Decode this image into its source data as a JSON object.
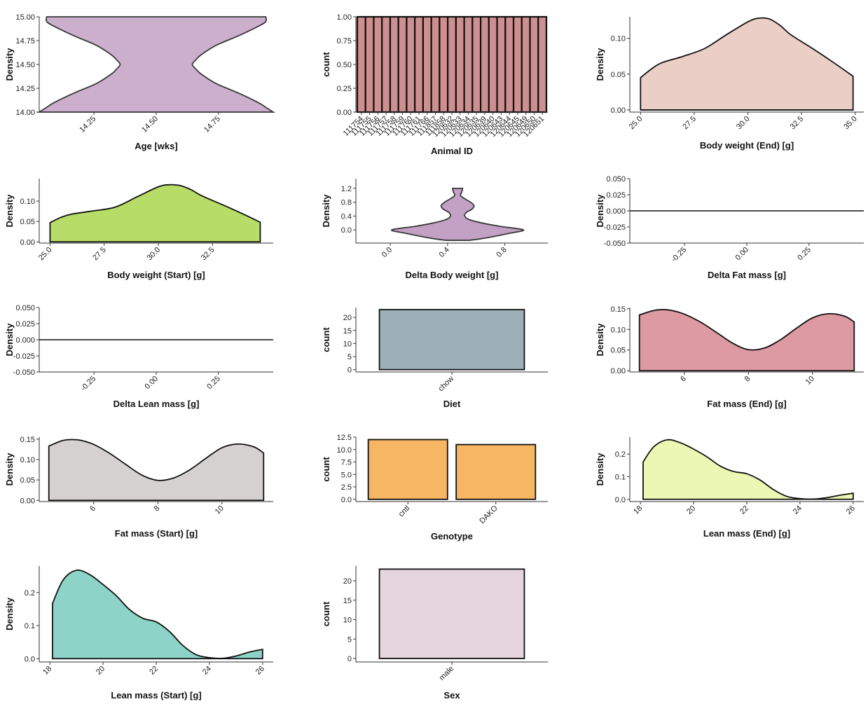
{
  "chart_data": [
    {
      "id": "age",
      "type": "violin",
      "xlabel": "Age [wks]",
      "ylabel": "Density",
      "fill": "#cbafcd",
      "ylim": [
        14.0,
        15.0
      ],
      "yticks": [
        "14.00",
        "14.25",
        "14.50",
        "14.75",
        "15.00"
      ],
      "xlim": [
        14.03,
        14.97
      ],
      "xticks": [
        "14.25",
        "14.50",
        "14.75"
      ],
      "shape_y": [
        14.0,
        14.05,
        14.1,
        14.2,
        14.3,
        14.4,
        14.45,
        14.5,
        14.55,
        14.6,
        14.7,
        14.8,
        14.9,
        14.95,
        15.0
      ],
      "shape_halfwidth": [
        0.47,
        0.44,
        0.41,
        0.33,
        0.24,
        0.18,
        0.16,
        0.145,
        0.16,
        0.18,
        0.24,
        0.33,
        0.41,
        0.44,
        0.44
      ]
    },
    {
      "id": "animal",
      "type": "bar",
      "xlabel": "Animal ID",
      "ylabel": "count",
      "fill": "#cd8f90",
      "ylim": [
        0,
        1.0
      ],
      "yticks": [
        "0.00",
        "0.25",
        "0.50",
        "0.75",
        "1.00"
      ],
      "categories": [
        "111754",
        "111755",
        "111756",
        "111757",
        "111758",
        "111759",
        "111760",
        "111761",
        "111766",
        "111857",
        "111858",
        "120632",
        "120633",
        "120634",
        "120635",
        "120639",
        "120640",
        "120643",
        "120644",
        "120645",
        "120649",
        "120650",
        "120651"
      ],
      "values": [
        1,
        1,
        1,
        1,
        1,
        1,
        1,
        1,
        1,
        1,
        1,
        1,
        1,
        1,
        1,
        1,
        1,
        1,
        1,
        1,
        1,
        1,
        1
      ]
    },
    {
      "id": "bw_end",
      "type": "density",
      "xlabel": "Body weight (End) [g]",
      "ylabel": "Density",
      "fill": "#ebcfc6",
      "xlim": [
        24.5,
        35.4
      ],
      "xticks": [
        "25.0",
        "27.5",
        "30.0",
        "32.5",
        "35.0"
      ],
      "ylim": [
        -0.003,
        0.13
      ],
      "yticks": [
        "0.00",
        "0.05",
        "0.10"
      ],
      "x": [
        25.0,
        25.5,
        26.0,
        27.0,
        28.0,
        29.0,
        30.0,
        30.5,
        31.0,
        31.5,
        32.0,
        33.0,
        34.0,
        34.9
      ],
      "y": [
        0.045,
        0.057,
        0.066,
        0.075,
        0.086,
        0.105,
        0.123,
        0.128,
        0.127,
        0.118,
        0.105,
        0.086,
        0.066,
        0.047
      ]
    },
    {
      "id": "bw_start",
      "type": "density",
      "xlabel": "Body weight (Start) [g]",
      "ylabel": "Density",
      "fill": "#b8dc68",
      "xlim": [
        24.5,
        35.3
      ],
      "xticks": [
        "25.0",
        "27.5",
        "30.0",
        "32.5"
      ],
      "ylim": [
        -0.003,
        0.155
      ],
      "yticks": [
        "0.00",
        "0.05",
        "0.10"
      ],
      "x": [
        25.0,
        25.5,
        26.0,
        27.0,
        28.0,
        29.0,
        30.0,
        30.5,
        31.0,
        31.5,
        32.0,
        33.0,
        34.0,
        34.7
      ],
      "y": [
        0.047,
        0.06,
        0.068,
        0.076,
        0.085,
        0.11,
        0.135,
        0.14,
        0.138,
        0.128,
        0.113,
        0.09,
        0.066,
        0.048
      ]
    },
    {
      "id": "delta_bw",
      "type": "violin",
      "xlabel": "Delta Body weight [g]",
      "ylabel": "Density",
      "fill": "#c2a1c4",
      "ylim": [
        -0.38,
        1.48
      ],
      "yticks": [
        "0.0",
        "0.4",
        "0.8",
        "1.2"
      ],
      "xlim": [
        -0.24,
        1.1
      ],
      "xticks": [
        "0.0",
        "0.4",
        "0.8"
      ],
      "center_x": 0.47,
      "shape_y": [
        -0.3,
        -0.27,
        -0.2,
        -0.1,
        0.0,
        0.1,
        0.2,
        0.3,
        0.4,
        0.5,
        0.6,
        0.7,
        0.8,
        0.9,
        1.0,
        1.1,
        1.2
      ],
      "shape_halfwidth": [
        0.08,
        0.14,
        0.24,
        0.36,
        0.46,
        0.3,
        0.17,
        0.08,
        0.05,
        0.06,
        0.1,
        0.115,
        0.09,
        0.05,
        0.02,
        0.03,
        0.035
      ]
    },
    {
      "id": "delta_fat",
      "type": "density",
      "xlabel": "Delta Fat mass [g]",
      "ylabel": "Density",
      "fill": "#333333",
      "xlim": [
        -0.47,
        0.47
      ],
      "xticks": [
        "-0.25",
        "0.00",
        "0.25"
      ],
      "ylim": [
        -0.05,
        0.05
      ],
      "yticks": [
        "-0.050",
        "-0.025",
        "0.000",
        "0.025",
        "0.050"
      ],
      "x": [
        -0.47,
        0.47
      ],
      "y": [
        0,
        0
      ]
    },
    {
      "id": "delta_lean",
      "type": "density",
      "xlabel": "Delta Lean mass [g]",
      "ylabel": "Density",
      "fill": "#333333",
      "xlim": [
        -0.47,
        0.47
      ],
      "xticks": [
        "-0.25",
        "0.00",
        "0.25"
      ],
      "ylim": [
        -0.05,
        0.05
      ],
      "yticks": [
        "-0.050",
        "-0.025",
        "0.000",
        "0.025",
        "0.050"
      ],
      "x": [
        -0.47,
        0.47
      ],
      "y": [
        0,
        0
      ]
    },
    {
      "id": "diet",
      "type": "bar",
      "xlabel": "Diet",
      "ylabel": "count",
      "fill": "#9db0b7",
      "ylim": [
        -0.9,
        23.8
      ],
      "yticks": [
        "0",
        "5",
        "10",
        "15",
        "20"
      ],
      "categories": [
        "chow"
      ],
      "values": [
        23
      ]
    },
    {
      "id": "fat_end",
      "type": "density",
      "xlabel": "Fat mass (End) [g]",
      "ylabel": "Density",
      "fill": "#dd9aa2",
      "xlim": [
        4.3,
        11.6
      ],
      "xticks": [
        "6",
        "8",
        "10"
      ],
      "ylim": [
        -0.003,
        0.153
      ],
      "yticks": [
        "0.00",
        "0.05",
        "0.10",
        "0.15"
      ],
      "x": [
        4.6,
        5.0,
        5.3,
        5.6,
        6.0,
        6.5,
        7.0,
        7.5,
        8.0,
        8.5,
        9.0,
        9.5,
        10.0,
        10.5,
        11.0,
        11.3
      ],
      "y": [
        0.135,
        0.145,
        0.148,
        0.146,
        0.137,
        0.118,
        0.093,
        0.067,
        0.051,
        0.055,
        0.075,
        0.103,
        0.128,
        0.138,
        0.132,
        0.118
      ]
    },
    {
      "id": "fat_start",
      "type": "density",
      "xlabel": "Fat mass (Start) [g]",
      "ylabel": "Density",
      "fill": "#d4d1d0",
      "xlim": [
        4.3,
        11.6
      ],
      "xticks": [
        "6",
        "8",
        "10"
      ],
      "ylim": [
        -0.003,
        0.155
      ],
      "yticks": [
        "0.00",
        "0.05",
        "0.10",
        "0.15"
      ],
      "x": [
        4.6,
        5.0,
        5.3,
        5.6,
        6.0,
        6.5,
        7.0,
        7.5,
        8.0,
        8.5,
        9.0,
        9.5,
        10.0,
        10.5,
        11.0,
        11.3
      ],
      "y": [
        0.133,
        0.146,
        0.149,
        0.147,
        0.137,
        0.115,
        0.088,
        0.062,
        0.049,
        0.055,
        0.075,
        0.103,
        0.129,
        0.138,
        0.131,
        0.116
      ]
    },
    {
      "id": "genotype",
      "type": "bar",
      "xlabel": "Genotype",
      "ylabel": "count",
      "fill": "#f6b663",
      "ylim": [
        -0.45,
        12.5
      ],
      "yticks": [
        "0.0",
        "2.5",
        "5.0",
        "7.5",
        "10.0",
        "12.5"
      ],
      "categories": [
        "cntl",
        "DAKO"
      ],
      "values": [
        12,
        11
      ]
    },
    {
      "id": "lean_end",
      "type": "density",
      "xlabel": "Lean mass (End) [g]",
      "ylabel": "Density",
      "fill": "#ecf7b3",
      "xlim": [
        17.6,
        26.4
      ],
      "xticks": [
        "18",
        "20",
        "22",
        "24",
        "26"
      ],
      "ylim": [
        -0.01,
        0.275
      ],
      "yticks": [
        "0.0",
        "0.1",
        "0.2"
      ],
      "x": [
        18.1,
        18.5,
        19.0,
        19.5,
        20.0,
        20.5,
        21.0,
        21.5,
        22.0,
        22.5,
        23.0,
        23.5,
        24.0,
        24.5,
        25.0,
        25.5,
        26.0
      ],
      "y": [
        0.165,
        0.232,
        0.263,
        0.25,
        0.222,
        0.188,
        0.147,
        0.123,
        0.113,
        0.085,
        0.043,
        0.013,
        0.003,
        0.001,
        0.007,
        0.018,
        0.027
      ]
    },
    {
      "id": "lean_start",
      "type": "density",
      "xlabel": "Lean mass (Start) [g]",
      "ylabel": "Density",
      "fill": "#8dd3c7",
      "xlim": [
        17.6,
        26.4
      ],
      "xticks": [
        "18",
        "20",
        "22",
        "24",
        "26"
      ],
      "ylim": [
        -0.01,
        0.28
      ],
      "yticks": [
        "0.0",
        "0.1",
        "0.2"
      ],
      "x": [
        18.1,
        18.5,
        19.0,
        19.5,
        20.0,
        20.5,
        21.0,
        21.5,
        22.0,
        22.5,
        23.0,
        23.5,
        24.0,
        24.5,
        25.0,
        25.5,
        26.0
      ],
      "y": [
        0.167,
        0.238,
        0.267,
        0.254,
        0.224,
        0.19,
        0.148,
        0.122,
        0.111,
        0.082,
        0.04,
        0.012,
        0.003,
        0.001,
        0.008,
        0.02,
        0.028
      ]
    },
    {
      "id": "sex",
      "type": "bar",
      "xlabel": "Sex",
      "ylabel": "count",
      "fill": "#e6d5dd",
      "ylim": [
        -0.9,
        23.8
      ],
      "yticks": [
        "0",
        "5",
        "10",
        "15",
        "20"
      ],
      "categories": [
        "male"
      ],
      "values": [
        23
      ]
    }
  ]
}
